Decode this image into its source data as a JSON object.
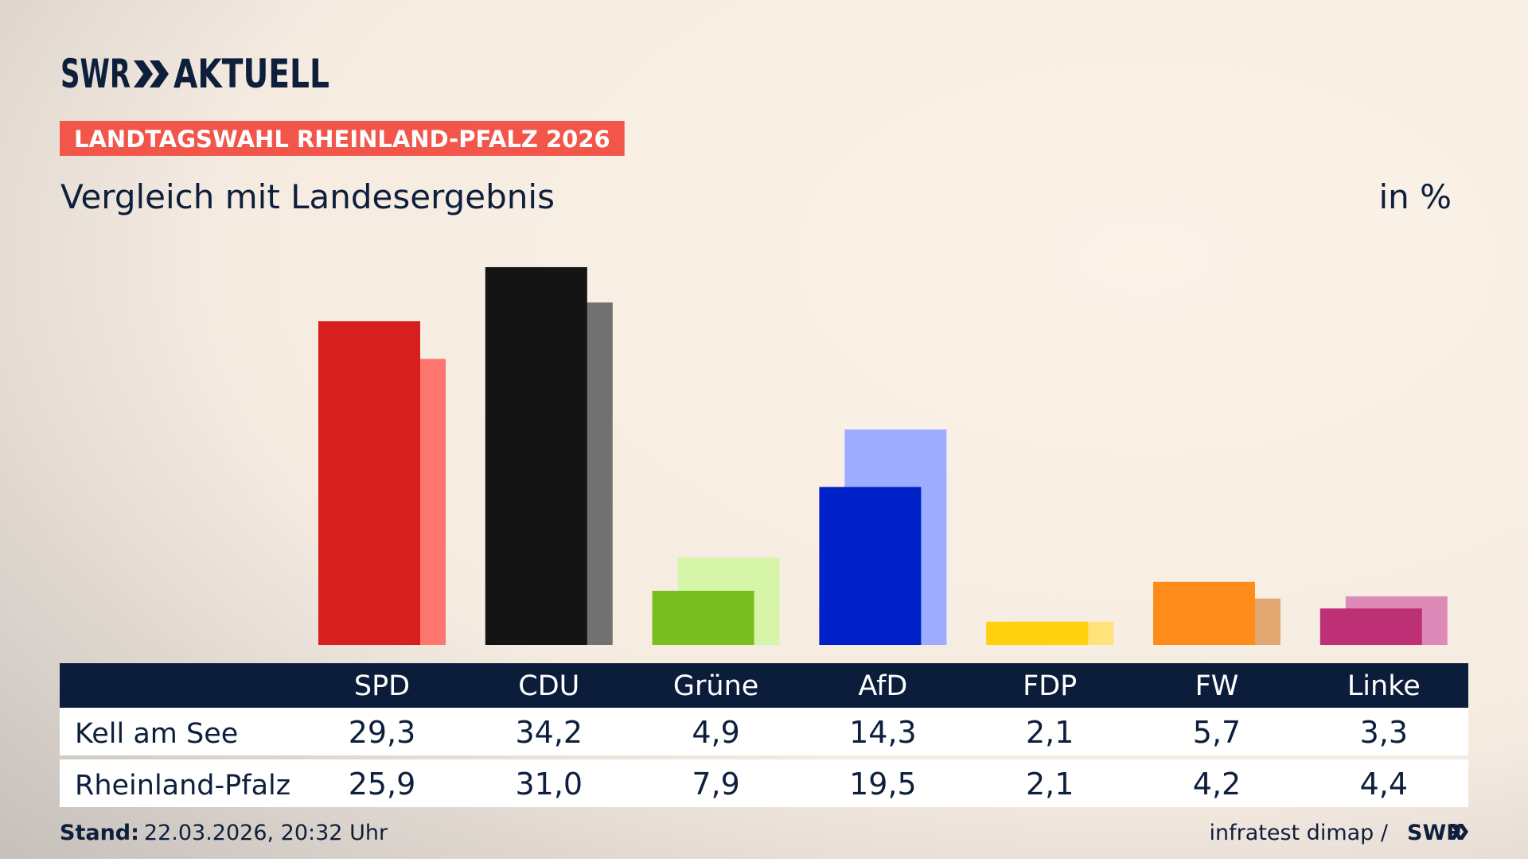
{
  "logo": {
    "brand": "SWR",
    "product": "AKTUELL"
  },
  "badge": "LANDTAGSWAHL RHEINLAND-PFALZ 2026",
  "chart_data": {
    "type": "bar",
    "title": "Vergleich mit Landesergebnis",
    "unit": "in %",
    "categories": [
      "SPD",
      "CDU",
      "Grüne",
      "AfD",
      "FDP",
      "FW",
      "Linke"
    ],
    "series": [
      {
        "name": "Kell am See",
        "colors": [
          "#d71f1f",
          "#141414",
          "#78be1e",
          "#0021c8",
          "#ffd10f",
          "#ff8c1a",
          "#be3075"
        ],
        "values": [
          29.3,
          34.2,
          4.9,
          14.3,
          2.1,
          5.7,
          3.3
        ],
        "value_labels": [
          "29,3",
          "34,2",
          "4,9",
          "14,3",
          "2,1",
          "5,7",
          "3,3"
        ]
      },
      {
        "name": "Rheinland-Pfalz",
        "colors": [
          "#ff7570",
          "#717171",
          "#d6f5a8",
          "#9dacff",
          "#ffe27a",
          "#e0a870",
          "#de8ab8"
        ],
        "values": [
          25.9,
          31.0,
          7.9,
          19.5,
          2.1,
          4.2,
          4.4
        ],
        "value_labels": [
          "25,9",
          "31,0",
          "7,9",
          "19,5",
          "2,1",
          "4,2",
          "4,4"
        ]
      }
    ]
  },
  "footer": {
    "stand_label": "Stand:",
    "stand": "22.03.2026, 20:32 Uhr",
    "source": "infratest dimap /",
    "source_logo": "SWR"
  }
}
